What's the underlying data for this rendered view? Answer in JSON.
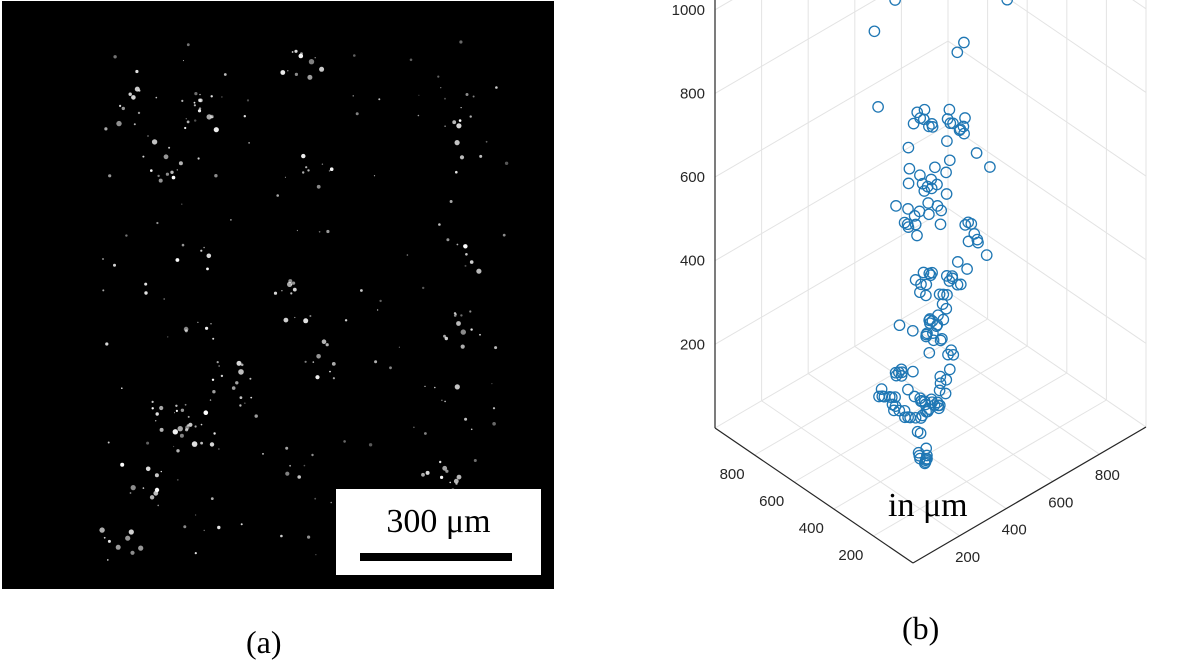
{
  "panel_a": {
    "caption": "(a)",
    "scale_bar_label": "300 μm",
    "scale_bar_length_um": 300,
    "background_color": "#000000",
    "particle_color": "#ffffff"
  },
  "panel_b": {
    "caption": "(b)",
    "unit_label": "in μm"
  },
  "chart_data": {
    "type": "scatter",
    "projection": "3d",
    "marker": "open-circle",
    "marker_color": "#1f77b4",
    "xlim": [
      0,
      1000
    ],
    "ylim": [
      0,
      1000
    ],
    "zlim": [
      0,
      1100
    ],
    "x_ticks": [
      "200",
      "400",
      "600",
      "800"
    ],
    "y_ticks": [
      "200",
      "400",
      "600",
      "800"
    ],
    "z_ticks": [
      "200",
      "400",
      "600",
      "800",
      "1000"
    ],
    "grid": true,
    "xlabel": "",
    "ylabel": "",
    "zlabel": "",
    "series": [
      {
        "points": [
          [
            120,
            120,
            1000
          ],
          [
            140,
            110,
            980
          ],
          [
            160,
            130,
            990
          ],
          [
            130,
            150,
            960
          ],
          [
            150,
            140,
            970
          ],
          [
            170,
            120,
            950
          ],
          [
            500,
            880,
            1010
          ],
          [
            520,
            860,
            990
          ],
          [
            880,
            500,
            1000
          ],
          [
            860,
            520,
            980
          ],
          [
            880,
            520,
            960
          ],
          [
            870,
            470,
            950
          ],
          [
            900,
            540,
            920
          ],
          [
            910,
            520,
            900
          ],
          [
            880,
            560,
            880
          ],
          [
            600,
            830,
            900
          ],
          [
            620,
            820,
            880
          ],
          [
            480,
            760,
            870
          ],
          [
            100,
            140,
            830
          ],
          [
            150,
            200,
            880
          ],
          [
            180,
            230,
            810
          ],
          [
            700,
            600,
            800
          ],
          [
            720,
            590,
            820
          ],
          [
            360,
            600,
            780
          ],
          [
            140,
            190,
            740
          ],
          [
            380,
            280,
            720
          ],
          [
            350,
            320,
            700
          ],
          [
            330,
            340,
            690
          ],
          [
            310,
            330,
            720
          ],
          [
            360,
            350,
            670
          ],
          [
            400,
            360,
            700
          ],
          [
            320,
            300,
            660
          ],
          [
            300,
            320,
            640
          ],
          [
            340,
            320,
            620
          ],
          [
            360,
            300,
            640
          ],
          [
            330,
            380,
            600
          ],
          [
            380,
            390,
            640
          ],
          [
            420,
            400,
            630
          ],
          [
            460,
            420,
            620
          ],
          [
            250,
            380,
            650
          ],
          [
            270,
            360,
            610
          ],
          [
            300,
            380,
            590
          ],
          [
            320,
            400,
            570
          ],
          [
            340,
            380,
            550
          ],
          [
            360,
            410,
            560
          ],
          [
            540,
            540,
            700
          ],
          [
            560,
            560,
            680
          ],
          [
            600,
            520,
            600
          ],
          [
            630,
            570,
            620
          ],
          [
            650,
            590,
            660
          ],
          [
            670,
            600,
            640
          ],
          [
            690,
            610,
            630
          ],
          [
            710,
            600,
            610
          ],
          [
            730,
            620,
            600
          ],
          [
            700,
            640,
            650
          ],
          [
            750,
            620,
            620
          ],
          [
            760,
            640,
            590
          ],
          [
            780,
            660,
            560
          ],
          [
            800,
            620,
            520
          ],
          [
            840,
            600,
            480
          ],
          [
            130,
            100,
            620
          ],
          [
            140,
            130,
            560
          ],
          [
            200,
            170,
            520
          ],
          [
            580,
            540,
            480
          ],
          [
            560,
            520,
            460
          ],
          [
            620,
            560,
            500
          ],
          [
            200,
            150,
            470
          ],
          [
            230,
            170,
            420
          ],
          [
            260,
            160,
            400
          ],
          [
            280,
            190,
            380
          ],
          [
            240,
            200,
            360
          ],
          [
            300,
            200,
            420
          ],
          [
            110,
            130,
            380
          ],
          [
            80,
            120,
            350
          ],
          [
            100,
            110,
            330
          ],
          [
            130,
            110,
            310
          ],
          [
            150,
            140,
            300
          ],
          [
            170,
            160,
            280
          ],
          [
            350,
            330,
            360
          ],
          [
            370,
            350,
            340
          ],
          [
            390,
            340,
            330
          ],
          [
            410,
            360,
            320
          ],
          [
            430,
            380,
            330
          ],
          [
            450,
            380,
            350
          ],
          [
            470,
            400,
            360
          ],
          [
            380,
            380,
            300
          ],
          [
            400,
            400,
            290
          ],
          [
            420,
            390,
            270
          ],
          [
            440,
            420,
            300
          ],
          [
            500,
            420,
            310
          ],
          [
            520,
            440,
            330
          ],
          [
            560,
            460,
            350
          ],
          [
            600,
            480,
            370
          ],
          [
            640,
            480,
            340
          ],
          [
            680,
            520,
            380
          ],
          [
            700,
            560,
            400
          ],
          [
            730,
            580,
            390
          ],
          [
            760,
            600,
            370
          ],
          [
            790,
            620,
            330
          ],
          [
            820,
            640,
            300
          ],
          [
            840,
            660,
            280
          ],
          [
            860,
            640,
            250
          ],
          [
            580,
            600,
            310
          ],
          [
            620,
            640,
            280
          ],
          [
            660,
            680,
            260
          ],
          [
            700,
            640,
            240
          ],
          [
            740,
            700,
            220
          ],
          [
            780,
            720,
            200
          ],
          [
            800,
            700,
            180
          ],
          [
            820,
            740,
            160
          ],
          [
            760,
            760,
            150
          ],
          [
            720,
            780,
            180
          ],
          [
            680,
            760,
            200
          ],
          [
            640,
            740,
            230
          ],
          [
            220,
            200,
            250
          ],
          [
            240,
            220,
            230
          ],
          [
            260,
            240,
            200
          ],
          [
            300,
            260,
            210
          ],
          [
            320,
            280,
            190
          ],
          [
            360,
            300,
            170
          ],
          [
            380,
            320,
            150
          ],
          [
            400,
            340,
            130
          ],
          [
            420,
            360,
            160
          ],
          [
            440,
            380,
            180
          ],
          [
            480,
            400,
            120
          ],
          [
            500,
            420,
            140
          ],
          [
            160,
            160,
            160
          ],
          [
            180,
            180,
            140
          ],
          [
            200,
            200,
            120
          ],
          [
            230,
            200,
            110
          ],
          [
            250,
            230,
            90
          ],
          [
            270,
            250,
            80
          ],
          [
            280,
            270,
            60
          ],
          [
            300,
            290,
            50
          ],
          [
            320,
            310,
            70
          ],
          [
            340,
            330,
            40
          ],
          [
            300,
            330,
            110
          ],
          [
            330,
            350,
            90
          ],
          [
            200,
            260,
            200
          ],
          [
            220,
            300,
            180
          ],
          [
            260,
            320,
            160
          ],
          [
            300,
            340,
            140
          ],
          [
            340,
            360,
            120
          ],
          [
            380,
            400,
            100
          ],
          [
            420,
            420,
            90
          ],
          [
            460,
            460,
            70
          ],
          [
            500,
            480,
            60
          ],
          [
            540,
            500,
            40
          ],
          [
            560,
            520,
            80
          ],
          [
            600,
            520,
            100
          ],
          [
            640,
            560,
            120
          ],
          [
            660,
            600,
            90
          ],
          [
            700,
            620,
            70
          ],
          [
            600,
            640,
            140
          ],
          [
            560,
            660,
            160
          ],
          [
            520,
            680,
            180
          ],
          [
            120,
            300,
            280
          ],
          [
            140,
            320,
            250
          ],
          [
            160,
            360,
            230
          ],
          [
            200,
            380,
            210
          ],
          [
            240,
            400,
            190
          ],
          [
            280,
            420,
            170
          ],
          [
            300,
            460,
            150
          ],
          [
            320,
            480,
            120
          ],
          [
            350,
            500,
            100
          ],
          [
            360,
            520,
            80
          ],
          [
            400,
            540,
            60
          ],
          [
            440,
            560,
            40
          ],
          [
            460,
            600,
            120
          ],
          [
            480,
            620,
            100
          ],
          [
            500,
            660,
            80
          ],
          [
            520,
            700,
            60
          ],
          [
            540,
            720,
            40
          ],
          [
            580,
            740,
            20
          ]
        ]
      }
    ]
  }
}
